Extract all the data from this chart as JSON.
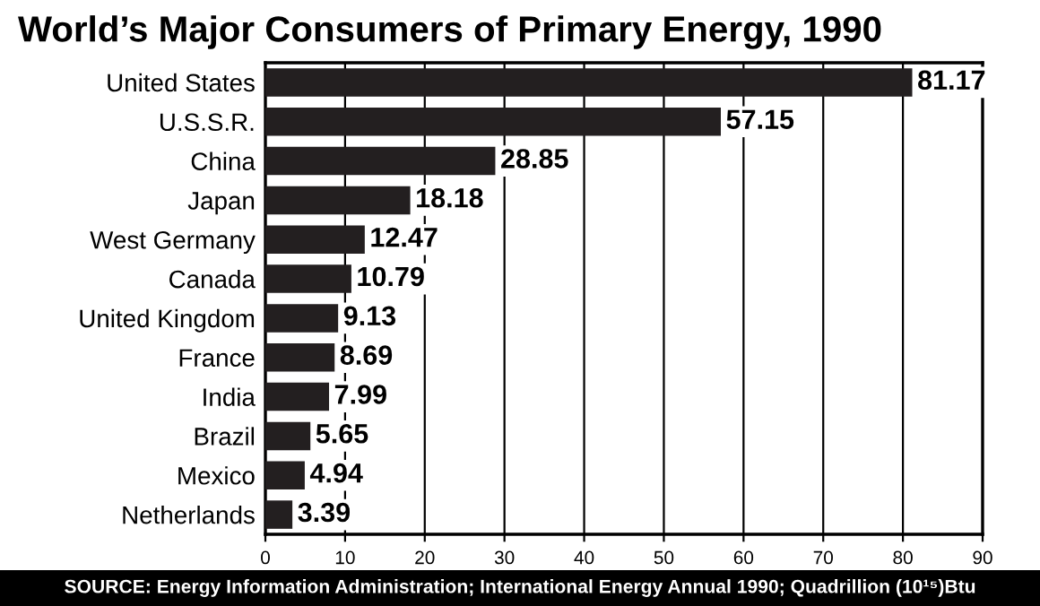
{
  "chart_data": {
    "type": "bar",
    "orientation": "horizontal",
    "title": "World’s Major Consumers of Primary Energy, 1990",
    "categories": [
      "United States",
      "U.S.S.R.",
      "China",
      "Japan",
      "West Germany",
      "Canada",
      "United Kingdom",
      "France",
      "India",
      "Brazil",
      "Mexico",
      "Netherlands"
    ],
    "values": [
      81.17,
      57.15,
      28.85,
      18.18,
      12.47,
      10.79,
      9.13,
      8.69,
      7.99,
      5.65,
      4.94,
      3.39
    ],
    "color": "#231f20",
    "xlim": [
      0,
      90
    ],
    "xticks": [
      0,
      10,
      20,
      30,
      40,
      50,
      60,
      70,
      80,
      90
    ],
    "grid": "x",
    "data_labels": true,
    "annotations": [
      "SOURCE: Energy Information Administration; International Energy Annual 1990; Quadrillion (10¹⁵)Btu"
    ]
  }
}
